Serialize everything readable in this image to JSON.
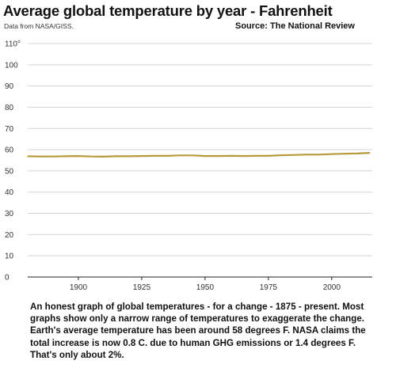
{
  "header": {
    "title": "Average global temperature by year - Fahrenheit",
    "note": "Data from NASA/GISS.",
    "source": "Source:  The National Review"
  },
  "chart_data": {
    "type": "line",
    "title": "Average global temperature by year - Fahrenheit",
    "xlabel": "",
    "ylabel": "",
    "xlim": [
      1880,
      2016
    ],
    "ylim": [
      0,
      110
    ],
    "x_ticks": [
      "1900",
      "1925",
      "1950",
      "1975",
      "2000"
    ],
    "x_tick_values": [
      1900,
      1925,
      1950,
      1975,
      2000
    ],
    "y_ticks": [
      "0",
      "10",
      "20",
      "30",
      "40",
      "50",
      "60",
      "70",
      "80",
      "90",
      "100",
      "110°"
    ],
    "y_tick_values": [
      0,
      10,
      20,
      30,
      40,
      50,
      60,
      70,
      80,
      90,
      100,
      110
    ],
    "grid": true,
    "line_color": "#b89a3a",
    "series": [
      {
        "x": [
          1880,
          1885,
          1890,
          1895,
          1900,
          1905,
          1910,
          1915,
          1920,
          1925,
          1930,
          1935,
          1940,
          1945,
          1950,
          1955,
          1960,
          1965,
          1970,
          1975,
          1980,
          1985,
          1990,
          1995,
          2000,
          2005,
          2010,
          2015
        ],
        "values": [
          56.9,
          56.8,
          56.8,
          56.9,
          57.0,
          56.8,
          56.7,
          56.9,
          56.9,
          57.0,
          57.1,
          57.1,
          57.3,
          57.3,
          57.0,
          57.0,
          57.1,
          57.0,
          57.1,
          57.1,
          57.4,
          57.5,
          57.7,
          57.7,
          57.9,
          58.1,
          58.2,
          58.5
        ]
      }
    ]
  },
  "caption": {
    "lines": [
      "An honest graph of global temperatures - for a change - 1875 - present.  Most",
      "graphs show only a narrow range of temperatures to exaggerate the change.",
      "Earth's average temperature has been around 58 degrees F.  NASA claims the",
      "total increase is now 0.8 C. due to human GHG emissions or 1.4 degrees F.",
      "That's only about 2%."
    ]
  }
}
